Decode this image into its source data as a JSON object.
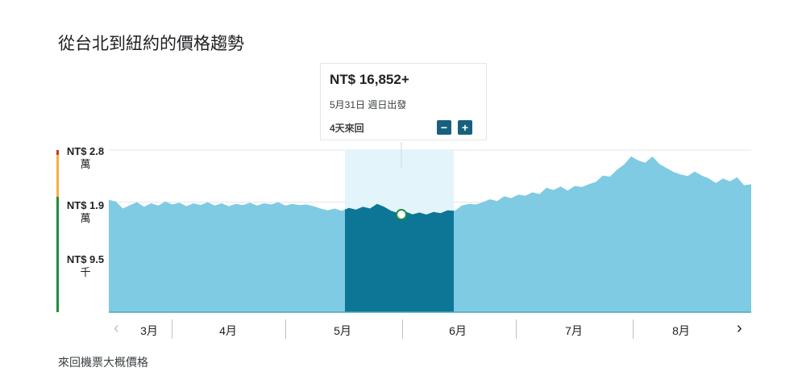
{
  "title": "從台北到紐約的價格趨勢",
  "footnote": "來回機票大概價格",
  "tooltip": {
    "price": "NT$ 16,852+",
    "date": "5月31日 週日出發",
    "duration": "4天來回",
    "minus_label": "−",
    "plus_label": "+"
  },
  "navigation": {
    "prev_icon": "chevron-left-icon",
    "next_icon": "chevron-right-icon",
    "prev": "‹",
    "next": "›"
  },
  "colors": {
    "area": "#7ecbe3",
    "selected_area": "#0d7696",
    "selected_band": "#e3f4fa",
    "gridline": "#e6e6e6",
    "bar_high": "#c0392b",
    "bar_mid": "#f5b041",
    "bar_low": "#1e8e3e"
  },
  "yaxis": {
    "labels": [
      {
        "price": "NT$ 2.8",
        "unit": "萬"
      },
      {
        "price": "NT$ 1.9",
        "unit": "萬"
      },
      {
        "price": "NT$ 9.5",
        "unit": "千"
      }
    ]
  },
  "months": [
    "3月",
    "4月",
    "5月",
    "6月",
    "7月",
    "8月"
  ],
  "chart_data": {
    "type": "area",
    "title": "從台北到紐約的價格趨勢",
    "xlabel": "",
    "ylabel": "",
    "x_range": [
      "3月1日",
      "8月31日"
    ],
    "ylim": [
      0,
      28000
    ],
    "yticks": [
      9500,
      19000,
      28000
    ],
    "ytick_labels": [
      "NT$ 9.5千",
      "NT$ 1.9萬",
      "NT$ 2.8萬"
    ],
    "months": [
      "3月",
      "4月",
      "5月",
      "6月",
      "7月",
      "8月"
    ],
    "selected_range": [
      "5月18日",
      "6月15日"
    ],
    "selected_point": {
      "date": "5月31日",
      "price": 16852
    },
    "series": [
      {
        "values": [
          19400,
          19100,
          17900,
          18500,
          19000,
          18200,
          18800,
          18400,
          19100,
          18600,
          18900,
          18300,
          18800,
          18500,
          19000,
          18400,
          18800,
          18300,
          18700,
          18500,
          18900,
          18400,
          18800,
          18600,
          19000,
          18400,
          18700,
          18500,
          18600,
          18300,
          17900,
          17600,
          17900,
          17500,
          18000,
          17700,
          18200,
          17900,
          18700,
          18200,
          17500,
          17100,
          17400,
          16900,
          17200,
          16852,
          17300,
          17100,
          17600,
          17500,
          18400,
          18700,
          18600,
          19000,
          19500,
          19200,
          20000,
          19700,
          20300,
          20100,
          20700,
          20400,
          21500,
          21100,
          21700,
          21000,
          21800,
          21600,
          22100,
          22500,
          23600,
          23400,
          24600,
          25500,
          26900,
          26200,
          25800,
          26900,
          25600,
          24900,
          24200,
          23800,
          23500,
          24300,
          23600,
          23100,
          22300,
          23100,
          22600,
          23300,
          21900,
          22100
        ]
      }
    ]
  }
}
